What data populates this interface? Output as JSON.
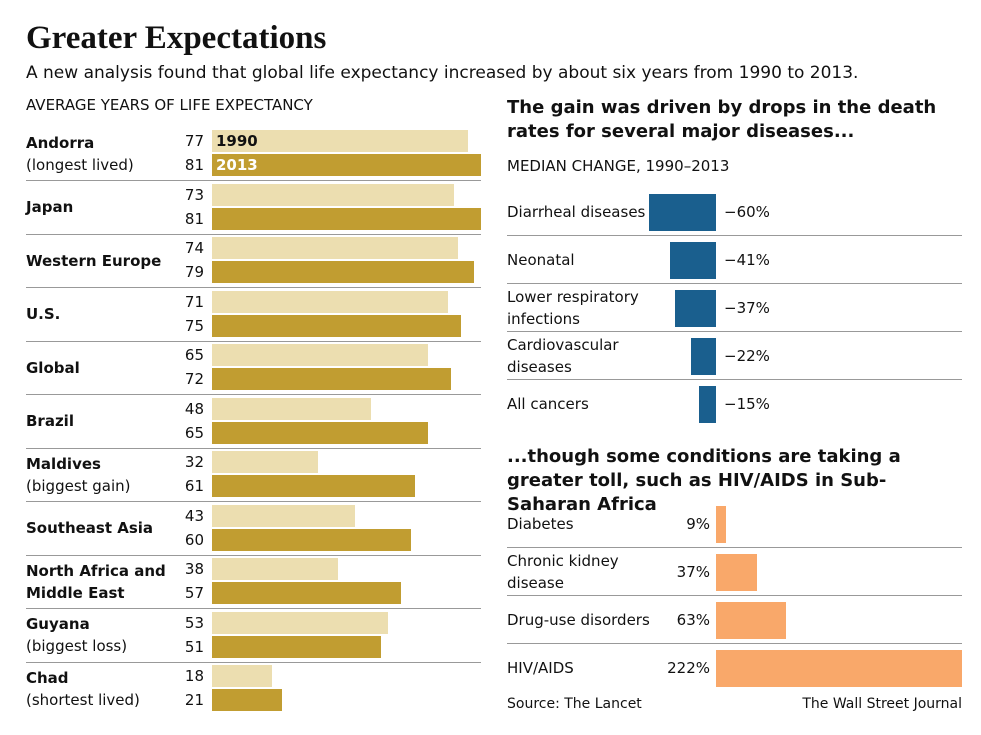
{
  "title": "Greater Expectations",
  "subtitle": "A new analysis found that global life expectancy increased by about six years from 1990 to 2013.",
  "source": "Source: The Lancet",
  "credit": "The Wall Street Journal",
  "chart_data": [
    {
      "type": "bar",
      "subtitle": "AVERAGE YEARS OF LIFE EXPECTANCY",
      "categories": [
        {
          "name": "Andorra",
          "note": "(longest lived)"
        },
        {
          "name": "Japan"
        },
        {
          "name": "Western Europe"
        },
        {
          "name": "U.S."
        },
        {
          "name": "Global"
        },
        {
          "name": "Brazil"
        },
        {
          "name": "Maldives",
          "note": "(biggest gain)"
        },
        {
          "name": "Southeast Asia"
        },
        {
          "name": "North Africa and Middle East"
        },
        {
          "name": "Guyana",
          "note": "(biggest loss)"
        },
        {
          "name": "Chad",
          "note": "(shortest lived)"
        }
      ],
      "series": [
        {
          "name": "1990",
          "color": "#ecdeb0",
          "values": [
            77,
            73,
            74,
            71,
            65,
            48,
            32,
            43,
            38,
            53,
            18
          ]
        },
        {
          "name": "2013",
          "color": "#c19d31",
          "values": [
            81,
            81,
            79,
            75,
            72,
            65,
            61,
            60,
            57,
            51,
            21
          ]
        }
      ],
      "xlim": [
        0,
        81
      ]
    },
    {
      "type": "bar",
      "title": "The gain was driven by drops in the death rates for several major diseases...",
      "subtitle": "MEDIAN CHANGE, 1990–2013",
      "categories": [
        "Diarrheal diseases",
        "Neonatal",
        "Lower respiratory infections",
        "Cardiovascular diseases",
        "All cancers"
      ],
      "values": [
        -60,
        -41,
        -37,
        -22,
        -15
      ],
      "value_labels": [
        "−60%",
        "−41%",
        "−37%",
        "−22%",
        "−15%"
      ],
      "color": "#1a5f8e",
      "xlim": [
        -60,
        0
      ]
    },
    {
      "type": "bar",
      "title": "...though some conditions are taking a greater toll, such as HIV/AIDS in Sub-Saharan Africa",
      "categories": [
        "Diabetes",
        "Chronic kidney disease",
        "Drug-use disorders",
        "HIV/AIDS"
      ],
      "values": [
        9,
        37,
        63,
        222
      ],
      "value_labels": [
        "9%",
        "37%",
        "63%",
        "222%"
      ],
      "color": "#f9a86a",
      "xlim": [
        0,
        222
      ]
    }
  ]
}
